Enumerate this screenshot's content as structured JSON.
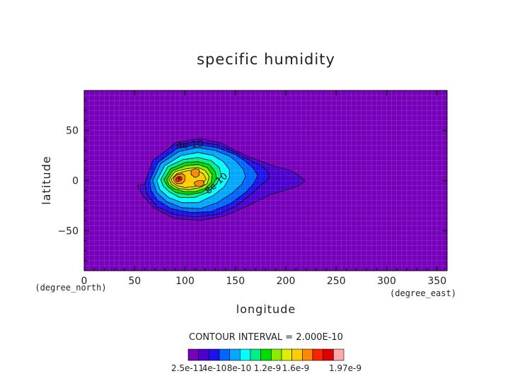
{
  "chart_data": {
    "type": "filled-contour",
    "title": "specific humidity",
    "xlabel": "longitude",
    "ylabel": "latitude",
    "x_units": "(degree_east)",
    "y_units": "(degree_north)",
    "xlim": [
      0,
      360
    ],
    "ylim": [
      -90,
      90
    ],
    "x_ticks": [
      "0",
      "50",
      "100",
      "150",
      "200",
      "250",
      "300",
      "350"
    ],
    "x_tick_values": [
      0,
      50,
      100,
      150,
      200,
      250,
      300,
      350
    ],
    "y_ticks": [
      "50",
      "0",
      "−50"
    ],
    "y_tick_values": [
      50,
      0,
      -50
    ],
    "grid": true,
    "contour_interval_text": "CONTOUR INTERVAL = 2.000E-10",
    "contour_labels": [
      {
        "text": "4e-10",
        "lon": 105,
        "lat": 33,
        "rotate": -4
      },
      {
        "text": "8e-10",
        "lon": 133,
        "lat": -5,
        "rotate": -42
      }
    ],
    "colorbar": {
      "colors": [
        "#7700bb",
        "#4b00cc",
        "#1f10ee",
        "#0066ff",
        "#00a8ff",
        "#00ffff",
        "#00ee88",
        "#00dd00",
        "#88ee00",
        "#ddee00",
        "#ffcc00",
        "#ff8800",
        "#ff2200",
        "#dd0000",
        "#ffaaaa"
      ],
      "tick_labels": [
        "2.5e-11",
        "4e-10",
        "8e-10",
        "1.2e-9",
        "1.6e-9",
        "1.97e-9"
      ],
      "tick_values": [
        2.5e-11,
        4e-10,
        8e-10,
        1.2e-09,
        1.6e-09,
        1.97e-09
      ]
    },
    "field": {
      "background": "#7700bb",
      "contours": [
        {
          "fill": "#4b00cc",
          "polygon": [
            [
              63,
              -3
            ],
            [
              70,
              18
            ],
            [
              90,
              38
            ],
            [
              115,
              42
            ],
            [
              135,
              38
            ],
            [
              150,
              30
            ],
            [
              165,
              23
            ],
            [
              190,
              14
            ],
            [
              205,
              10
            ],
            [
              213,
              5
            ],
            [
              219,
              0
            ],
            [
              215,
              -4
            ],
            [
              205,
              -8
            ],
            [
              185,
              -14
            ],
            [
              165,
              -24
            ],
            [
              140,
              -35
            ],
            [
              115,
              -40
            ],
            [
              90,
              -38
            ],
            [
              70,
              -28
            ],
            [
              58,
              -15
            ],
            [
              53,
              -5
            ]
          ]
        },
        {
          "fill": "#1f10ee",
          "polygon": [
            [
              60,
              -3
            ],
            [
              68,
              20
            ],
            [
              88,
              35
            ],
            [
              112,
              39
            ],
            [
              135,
              35
            ],
            [
              150,
              28
            ],
            [
              163,
              21
            ],
            [
              177,
              14
            ],
            [
              183,
              8
            ],
            [
              183,
              2
            ],
            [
              176,
              -4
            ],
            [
              165,
              -14
            ],
            [
              150,
              -26
            ],
            [
              132,
              -34
            ],
            [
              110,
              -36
            ],
            [
              90,
              -34
            ],
            [
              72,
              -26
            ],
            [
              62,
              -13
            ]
          ]
        },
        {
          "fill": "#0066ff",
          "polygon": [
            [
              65,
              0
            ],
            [
              73,
              18
            ],
            [
              92,
              32
            ],
            [
              112,
              36
            ],
            [
              132,
              33
            ],
            [
              150,
              26
            ],
            [
              160,
              19
            ],
            [
              168,
              12
            ],
            [
              172,
              5
            ],
            [
              168,
              -3
            ],
            [
              160,
              -12
            ],
            [
              145,
              -23
            ],
            [
              126,
              -31
            ],
            [
              106,
              -32
            ],
            [
              86,
              -28
            ],
            [
              72,
              -19
            ],
            [
              66,
              -9
            ]
          ]
        },
        {
          "fill": "#00a8ff",
          "polygon": [
            [
              68,
              0
            ],
            [
              76,
              17
            ],
            [
              94,
              29
            ],
            [
              112,
              33
            ],
            [
              130,
              30
            ],
            [
              145,
              24
            ],
            [
              152,
              18
            ],
            [
              158,
              11
            ],
            [
              160,
              4
            ],
            [
              156,
              -4
            ],
            [
              146,
              -13
            ],
            [
              132,
              -22
            ],
            [
              115,
              -28
            ],
            [
              97,
              -27
            ],
            [
              82,
              -21
            ],
            [
              72,
              -12
            ]
          ]
        },
        {
          "fill": "#00ffff",
          "polygon": [
            [
              72,
              0
            ],
            [
              80,
              15
            ],
            [
              96,
              25
            ],
            [
              113,
              28
            ],
            [
              128,
              25
            ],
            [
              138,
              19
            ],
            [
              144,
              11
            ],
            [
              144,
              3
            ],
            [
              139,
              -6
            ],
            [
              128,
              -15
            ],
            [
              113,
              -22
            ],
            [
              97,
              -22
            ],
            [
              84,
              -17
            ],
            [
              75,
              -9
            ]
          ]
        },
        {
          "fill": "#00ee88",
          "polygon": [
            [
              76,
              1
            ],
            [
              83,
              14
            ],
            [
              98,
              21
            ],
            [
              113,
              23
            ],
            [
              126,
              20
            ],
            [
              134,
              13
            ],
            [
              136,
              5
            ],
            [
              131,
              -4
            ],
            [
              122,
              -12
            ],
            [
              109,
              -17
            ],
            [
              95,
              -17
            ],
            [
              84,
              -11
            ],
            [
              78,
              -5
            ]
          ]
        },
        {
          "fill": "#00dd00",
          "polygon": [
            [
              79,
              1
            ],
            [
              86,
              12
            ],
            [
              100,
              18
            ],
            [
              113,
              19
            ],
            [
              124,
              16
            ],
            [
              130,
              9
            ],
            [
              131,
              2
            ],
            [
              126,
              -6
            ],
            [
              116,
              -12
            ],
            [
              103,
              -14
            ],
            [
              91,
              -12
            ],
            [
              83,
              -6
            ]
          ]
        },
        {
          "fill": "#88ee00",
          "polygon": [
            [
              82,
              1
            ],
            [
              88,
              10
            ],
            [
              101,
              15
            ],
            [
              113,
              16
            ],
            [
              122,
              13
            ],
            [
              127,
              6
            ],
            [
              126,
              -2
            ],
            [
              120,
              -8
            ],
            [
              110,
              -11
            ],
            [
              99,
              -11
            ],
            [
              89,
              -8
            ],
            [
              84,
              -4
            ]
          ]
        },
        {
          "fill": "#ddee00",
          "polygon": [
            [
              84,
              1
            ],
            [
              90,
              9
            ],
            [
              102,
              12
            ],
            [
              113,
              13
            ],
            [
              120,
              10
            ],
            [
              124,
              4
            ],
            [
              122,
              -3
            ],
            [
              115,
              -7
            ],
            [
              104,
              -9
            ],
            [
              94,
              -8
            ],
            [
              87,
              -4
            ]
          ]
        },
        {
          "fill": "#ffcc00",
          "polygon": [
            [
              86,
              1
            ],
            [
              92,
              7
            ],
            [
              103,
              10
            ],
            [
              112,
              10
            ],
            [
              118,
              7
            ],
            [
              121,
              2
            ],
            [
              118,
              -3
            ],
            [
              110,
              -6
            ],
            [
              100,
              -7
            ],
            [
              92,
              -5
            ],
            [
              88,
              -2
            ]
          ]
        },
        {
          "fill": "#ff8800",
          "polygon": [
            [
              89,
              3
            ],
            [
              92,
              6
            ],
            [
              97,
              7
            ],
            [
              100,
              5
            ],
            [
              100,
              0
            ],
            [
              97,
              -3
            ],
            [
              92,
              -3
            ],
            [
              89,
              0
            ]
          ]
        },
        {
          "fill": "#ff8800",
          "polygon": [
            [
              106,
              10
            ],
            [
              110,
              12
            ],
            [
              114,
              11
            ],
            [
              114,
              5
            ],
            [
              110,
              3
            ],
            [
              106,
              6
            ]
          ]
        },
        {
          "fill": "#ff8800",
          "polygon": [
            [
              109,
              -2
            ],
            [
              113,
              0
            ],
            [
              118,
              0
            ],
            [
              119,
              -4
            ],
            [
              115,
              -6
            ],
            [
              110,
              -5
            ]
          ]
        },
        {
          "fill": "#ff2200",
          "polygon": [
            [
              91,
              2
            ],
            [
              93,
              4
            ],
            [
              96,
              4
            ],
            [
              97,
              2
            ],
            [
              96,
              0
            ],
            [
              93,
              -1
            ],
            [
              91,
              0
            ]
          ]
        },
        {
          "fill": "#dd0000",
          "polygon": [
            [
              93,
              2
            ],
            [
              94,
              3
            ],
            [
              95,
              3
            ],
            [
              95,
              1
            ],
            [
              94,
              1
            ]
          ]
        }
      ]
    }
  }
}
